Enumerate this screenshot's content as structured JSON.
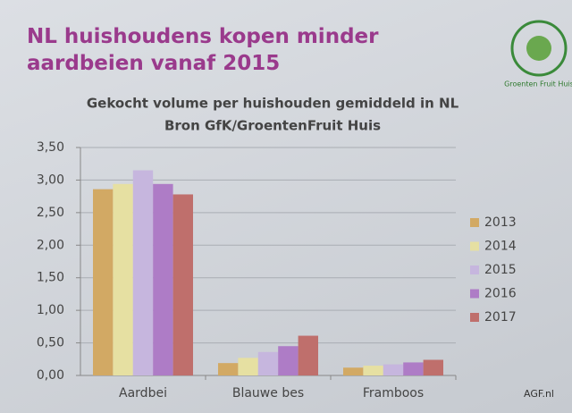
{
  "slide": {
    "title": "NL huishoudens kopen minder aardbeien vanaf 2015",
    "logo": "Groenten Fruit Huis",
    "watermark": "AGF.nl"
  },
  "chart_data": {
    "type": "bar",
    "title": "Gekocht volume per huishouden gemiddeld in NL",
    "subtitle": "Bron GfK/GroentenFruit Huis",
    "categories": [
      "Aardbei",
      "Blauwe bes",
      "Framboos"
    ],
    "series": [
      {
        "name": "2013",
        "color": "#d2a964",
        "values": [
          2.86,
          0.19,
          0.12
        ]
      },
      {
        "name": "2014",
        "color": "#e6e0a2",
        "values": [
          2.94,
          0.27,
          0.15
        ]
      },
      {
        "name": "2015",
        "color": "#c6b6de",
        "values": [
          3.15,
          0.36,
          0.17
        ]
      },
      {
        "name": "2016",
        "color": "#ae7cc6",
        "values": [
          2.94,
          0.45,
          0.2
        ]
      },
      {
        "name": "2017",
        "color": "#bf6f6c",
        "values": [
          2.78,
          0.61,
          0.24
        ]
      }
    ],
    "ylim": [
      0,
      3.5
    ],
    "yticks": [
      {
        "value": 0,
        "label": "0,00"
      },
      {
        "value": 0.5,
        "label": "0,50"
      },
      {
        "value": 1,
        "label": "1,00"
      },
      {
        "value": 1.5,
        "label": "1,50"
      },
      {
        "value": 2,
        "label": "2,00"
      },
      {
        "value": 2.5,
        "label": "2,50"
      },
      {
        "value": 3,
        "label": "3,00"
      },
      {
        "value": 3.5,
        "label": "3,50"
      }
    ],
    "grid": true,
    "legend": "right"
  }
}
